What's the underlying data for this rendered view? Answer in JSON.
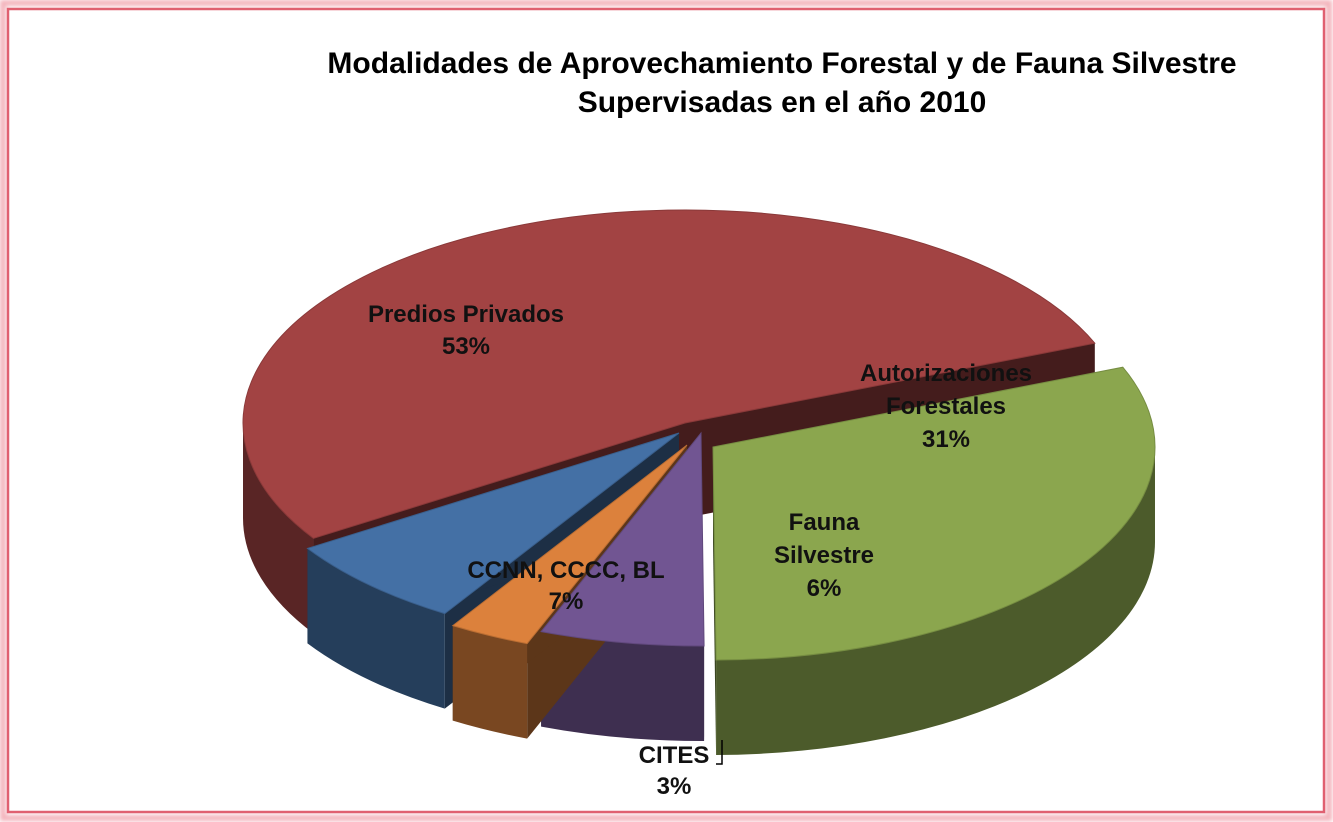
{
  "chart_data": {
    "type": "pie",
    "title": "Modalidades de Aprovechamiento Forestal y de Fauna Silvestre",
    "subtitle": "Supervisadas en el año 2010",
    "unit": "%",
    "style": "3d-exploded",
    "slices": [
      {
        "label_lines": [
          "Autorizaciones",
          "Forestales"
        ],
        "pct_label": "31%",
        "value": 31,
        "color": "#8ba64e"
      },
      {
        "label_lines": [
          "Fauna",
          "Silvestre"
        ],
        "pct_label": "6%",
        "value": 6,
        "color": "#715592"
      },
      {
        "label_lines": [
          "CITES"
        ],
        "pct_label": "3%",
        "value": 3,
        "color": "#dc813c"
      },
      {
        "label_lines": [
          "CCNN, CCCC, BL"
        ],
        "pct_label": "7%",
        "value": 7,
        "color": "#4470a5"
      },
      {
        "label_lines": [
          "Predios Privados"
        ],
        "pct_label": "53%",
        "value": 53,
        "color": "#a24343"
      }
    ]
  },
  "frame": {
    "border_color": "#e06070",
    "background": "#ffffff"
  }
}
